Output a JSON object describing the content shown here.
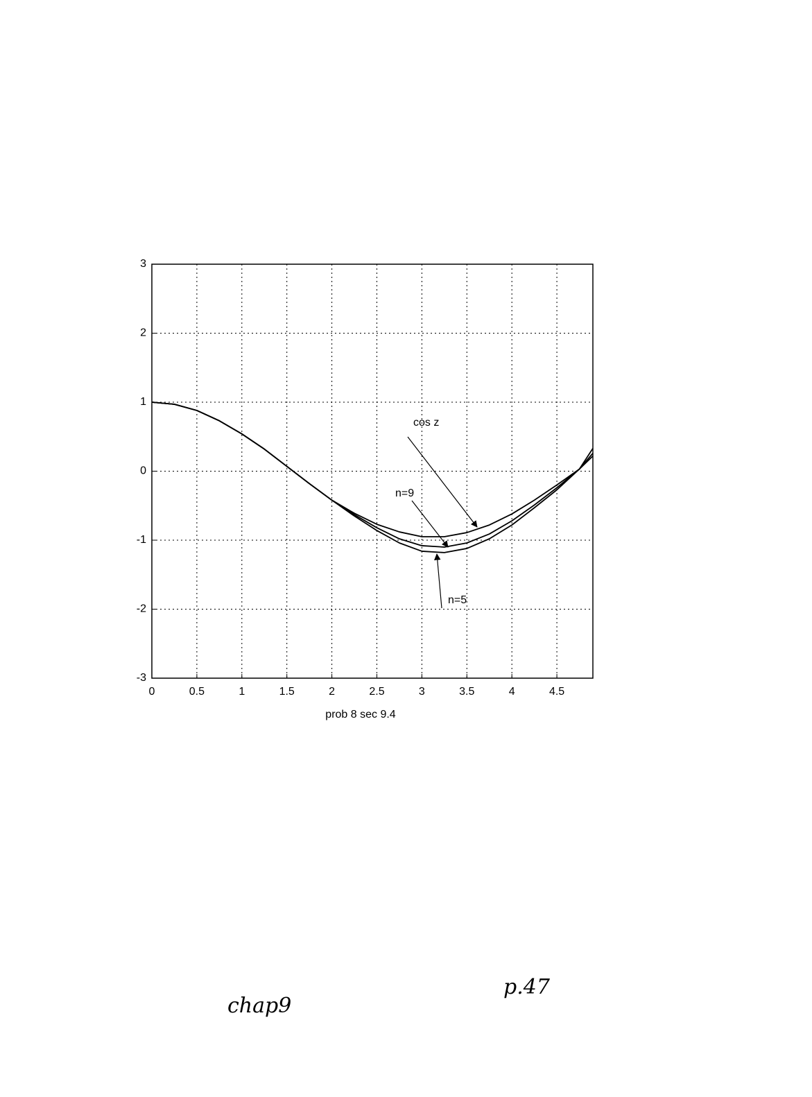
{
  "chart_data": {
    "type": "line",
    "x_label": "prob 8 sec 9.4",
    "x": [
      0,
      0.25,
      0.5,
      0.75,
      1,
      1.25,
      1.5,
      1.75,
      2,
      2.25,
      2.5,
      2.75,
      3,
      3.25,
      3.5,
      3.75,
      4,
      4.25,
      4.5,
      4.75,
      4.9
    ],
    "series": [
      {
        "name": "cos z",
        "color": "#000000",
        "values": [
          1,
          0.97,
          0.88,
          0.73,
          0.54,
          0.32,
          0.07,
          -0.18,
          -0.42,
          -0.61,
          -0.77,
          -0.88,
          -0.95,
          -0.95,
          -0.89,
          -0.78,
          -0.62,
          -0.42,
          -0.2,
          0.03,
          0.22
        ]
      },
      {
        "name": "n=9",
        "color": "#000000",
        "values": [
          1,
          0.97,
          0.88,
          0.73,
          0.54,
          0.32,
          0.07,
          -0.18,
          -0.42,
          -0.63,
          -0.82,
          -0.98,
          -1.08,
          -1.1,
          -1.04,
          -0.91,
          -0.72,
          -0.49,
          -0.24,
          0.03,
          0.26
        ]
      },
      {
        "name": "n=5",
        "color": "#000000",
        "values": [
          1,
          0.97,
          0.88,
          0.73,
          0.54,
          0.32,
          0.07,
          -0.18,
          -0.42,
          -0.65,
          -0.86,
          -1.04,
          -1.16,
          -1.18,
          -1.12,
          -0.98,
          -0.78,
          -0.53,
          -0.27,
          0.03,
          0.33
        ]
      }
    ],
    "xlim": [
      0,
      4.9
    ],
    "ylim": [
      -3,
      3
    ],
    "xticks": [
      0,
      0.5,
      1,
      1.5,
      2,
      2.5,
      3,
      3.5,
      4,
      4.5
    ],
    "yticks": [
      -3,
      -2,
      -1,
      0,
      1,
      2,
      3
    ],
    "grid": true
  },
  "page": {
    "footer_left": "chap9",
    "footer_right": "p.47"
  }
}
